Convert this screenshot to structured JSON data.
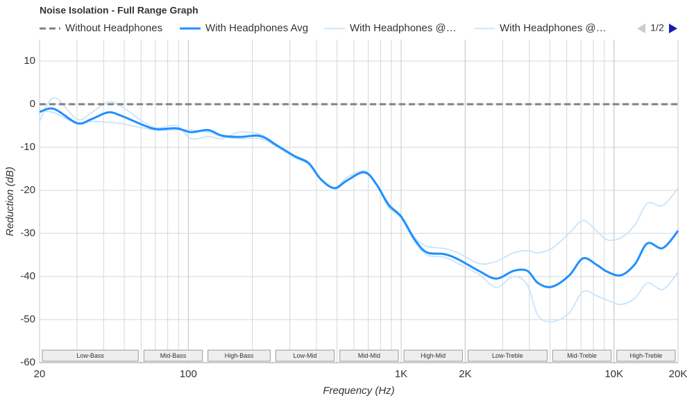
{
  "chart_data": {
    "type": "line",
    "title": "Noise Isolation - Full Range Graph",
    "xlabel": "Frequency (Hz)",
    "ylabel": "Reduction (dB)",
    "xscale": "log",
    "xlim": [
      20,
      20000
    ],
    "ylim": [
      -60,
      15
    ],
    "xticks": [
      20,
      100,
      {
        "value": 1000,
        "label": "1K"
      },
      {
        "value": 2000,
        "label": "2K"
      },
      {
        "value": 10000,
        "label": "10K"
      },
      {
        "value": 20000,
        "label": "20K"
      }
    ],
    "yticks": [
      -60,
      -50,
      -40,
      -30,
      -20,
      -10,
      0,
      10
    ],
    "grid": true,
    "page": "1/2",
    "bands": [
      {
        "name": "Low-Bass",
        "range": [
          20,
          60
        ]
      },
      {
        "name": "Mid-Bass",
        "range": [
          60,
          120
        ]
      },
      {
        "name": "High-Bass",
        "range": [
          120,
          250
        ]
      },
      {
        "name": "Low-Mid",
        "range": [
          250,
          500
        ]
      },
      {
        "name": "Mid-Mid",
        "range": [
          500,
          1000
        ]
      },
      {
        "name": "High-Mid",
        "range": [
          1000,
          2000
        ]
      },
      {
        "name": "Low-Treble",
        "range": [
          2000,
          5000
        ]
      },
      {
        "name": "Mid-Treble",
        "range": [
          5000,
          10000
        ]
      },
      {
        "name": "High-Treble",
        "range": [
          10000,
          20000
        ]
      }
    ],
    "x": [
      20,
      23.4,
      30,
      35,
      42,
      48.5,
      61,
      71,
      88,
      103,
      124,
      144,
      174,
      218,
      263,
      317,
      368,
      419,
      486,
      557,
      672,
      763,
      874,
      1000,
      1161,
      1320,
      1592,
      1850,
      2318,
      2798,
      3374,
      3920,
      4388,
      5100,
      6152,
      7148,
      8300,
      9298,
      10800,
      12560,
      14360,
      16960,
      20000
    ],
    "series": [
      {
        "name": "Without Headphones",
        "color": "#808080",
        "dashed": true,
        "width": 3,
        "values": [
          0,
          0,
          0,
          0,
          0,
          0,
          0,
          0,
          0,
          0,
          0,
          0,
          0,
          0,
          0,
          0,
          0,
          0,
          0,
          0,
          0,
          0,
          0,
          0,
          0,
          0,
          0,
          0,
          0,
          0,
          0,
          0,
          0,
          0,
          0,
          0,
          0,
          0,
          0,
          0,
          0,
          0,
          0
        ]
      },
      {
        "name": "With Headphones @…",
        "color": "#c8e4fb",
        "width": 1.8,
        "values": [
          -4,
          1.5,
          -3.5,
          -2,
          0.5,
          -0.5,
          -4,
          -5.5,
          -5,
          -8,
          -7.5,
          -8,
          -6.5,
          -7,
          -9.5,
          -12,
          -13.5,
          -17.5,
          -19.5,
          -17,
          -15.5,
          -18.5,
          -23,
          -26,
          -31,
          -33,
          -33.5,
          -34.5,
          -37,
          -36.5,
          -34.5,
          -34,
          -34.5,
          -33.5,
          -30,
          -27,
          -29.5,
          -31.5,
          -31,
          -28,
          -23,
          -23.5,
          -19.5
        ]
      },
      {
        "name": "With Headphones @…",
        "color": "#c8e4fb",
        "width": 1.8,
        "values": [
          -1.5,
          -2,
          -4.5,
          -4,
          -4.2,
          -4.5,
          -5.5,
          -6,
          -6,
          -6,
          -6.5,
          -7.5,
          -8,
          -8,
          -10,
          -12.5,
          -14,
          -17.5,
          -19.5,
          -17,
          -16,
          -18.5,
          -24,
          -26.5,
          -32,
          -35,
          -35.5,
          -37,
          -39.5,
          -42.5,
          -40,
          -42,
          -49,
          -50.5,
          -48.5,
          -43.5,
          -44.5,
          -45.5,
          -46.5,
          -45,
          -41.5,
          -43,
          -39
        ]
      },
      {
        "name": "With Headphones Avg",
        "color": "#1e90ff",
        "width": 3,
        "values": [
          -1.8,
          -1.1,
          -4.4,
          -3.5,
          -1.9,
          -2.7,
          -4.8,
          -5.8,
          -5.6,
          -6.5,
          -6,
          -7.3,
          -7.6,
          -7.4,
          -9.7,
          -12.1,
          -13.7,
          -17.4,
          -19.5,
          -17.7,
          -15.8,
          -18.5,
          -23.4,
          -26.1,
          -31.5,
          -34.4,
          -34.8,
          -36,
          -38.7,
          -40.5,
          -38.7,
          -38.7,
          -41.5,
          -42.4,
          -39.8,
          -35.8,
          -37.3,
          -38.9,
          -39.7,
          -37.1,
          -32.3,
          -33.4,
          -29.4
        ]
      }
    ],
    "legend_order": [
      0,
      3,
      1,
      2
    ]
  }
}
